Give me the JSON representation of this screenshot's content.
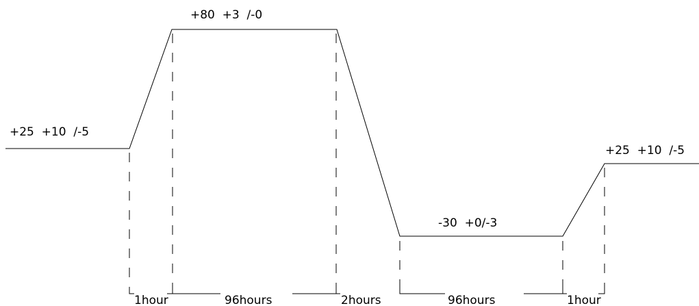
{
  "profile": {
    "levels": {
      "start": "+25  +10  /-5",
      "high": "+80  +3  /-0",
      "low": "-30  +0/-3",
      "end": "+25  +10  /-5"
    },
    "durations": {
      "ramp_up": "1hour",
      "hold_high": "96hours",
      "ramp_down": "2hours",
      "hold_low": "96hours",
      "ramp_back": "1hour"
    }
  }
}
